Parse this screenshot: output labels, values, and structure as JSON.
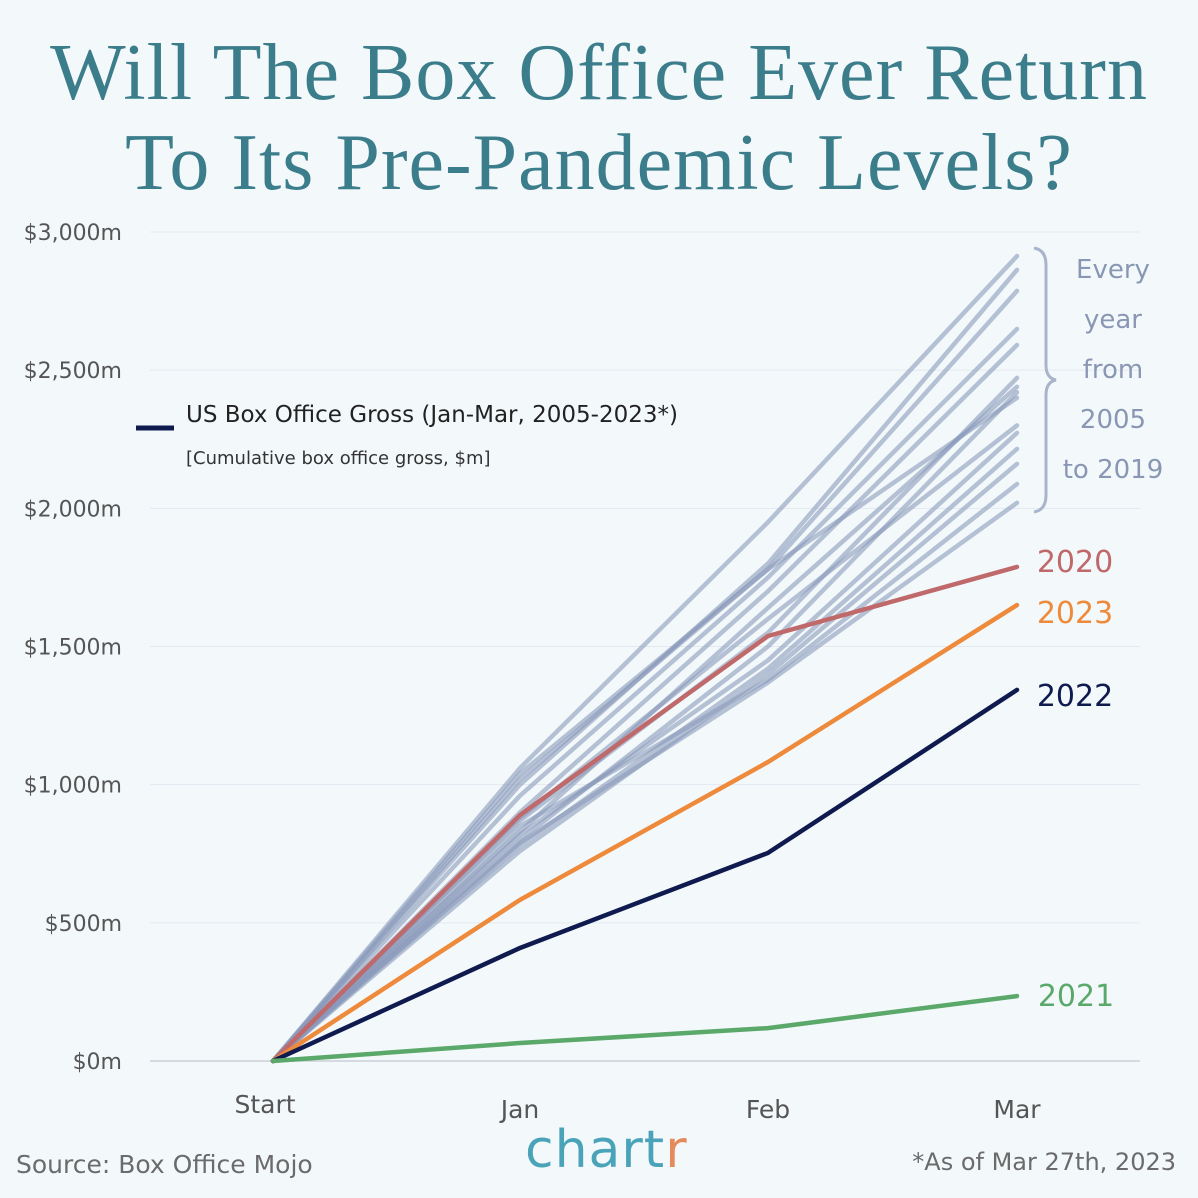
{
  "title_line1": "Will The Box Office Ever Return",
  "title_line2": "To Its Pre-Pandemic Levels?",
  "source": "Source: Box Office Mojo",
  "footnote": "*As of Mar 27th, 2023",
  "logo": {
    "main": "chart",
    "accent": "r"
  },
  "chart_data": {
    "type": "line",
    "title": "US Box Office Gross (Jan-Mar, 2005-2023*)",
    "subtitle": "[Cumulative box office gross, $m]",
    "categories": [
      "Start",
      "Jan",
      "Feb",
      "Mar"
    ],
    "ylim": [
      0,
      3000
    ],
    "yticks": [
      0,
      500,
      1000,
      1500,
      2000,
      2500,
      3000
    ],
    "ytick_labels": [
      "$0m",
      "$500m",
      "$1,000m",
      "$1,500m",
      "$2,000m",
      "$2,500m",
      "$3,000m"
    ],
    "grid": true,
    "legend": "top-left",
    "bracket_annotation": [
      "Every",
      "year",
      "from",
      "2005",
      "to 2019"
    ],
    "colors": {
      "pre_pandemic": "#8a9aba",
      "2020": "#c0696b",
      "2021": "#5aa86a",
      "2022": "#0f1a4f",
      "2023": "#ee8a3c",
      "title": "#3b7d8b",
      "bracket": "#a9b4cb"
    },
    "pre_pandemic_series": [
      [
        0,
        1060,
        1950,
        2913
      ],
      [
        0,
        1000,
        1800,
        2863
      ],
      [
        0,
        1040,
        1780,
        2787
      ],
      [
        0,
        960,
        1750,
        2649
      ],
      [
        0,
        900,
        1700,
        2591
      ],
      [
        0,
        870,
        1550,
        2472
      ],
      [
        0,
        830,
        1640,
        2440
      ],
      [
        0,
        1020,
        1780,
        2400
      ],
      [
        0,
        800,
        1500,
        2420
      ],
      [
        0,
        820,
        1450,
        2273
      ],
      [
        0,
        780,
        1420,
        2215
      ],
      [
        0,
        760,
        1400,
        2161
      ],
      [
        0,
        850,
        1380,
        2088
      ],
      [
        0,
        790,
        1370,
        2020
      ],
      [
        0,
        880,
        1600,
        2300
      ]
    ],
    "series": [
      {
        "name": "2020",
        "values": [
          0,
          890,
          1538,
          1788
        ]
      },
      {
        "name": "2023",
        "values": [
          0,
          583,
          1082,
          1650
        ]
      },
      {
        "name": "2022",
        "values": [
          0,
          409,
          753,
          1343
        ]
      },
      {
        "name": "2021",
        "values": [
          0,
          65,
          119,
          235
        ]
      }
    ]
  }
}
